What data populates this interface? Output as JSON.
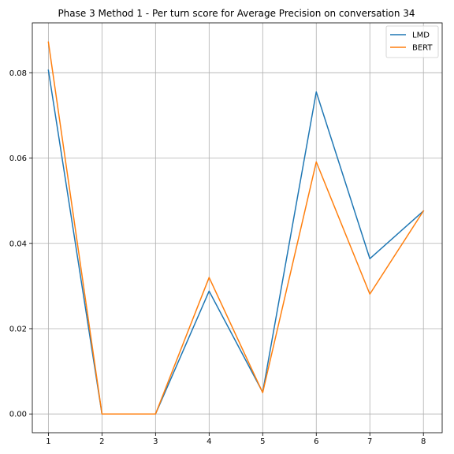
{
  "chart_data": {
    "type": "line",
    "title": "Phase 3 Method 1 - Per turn score for Average Precision on conversation 34",
    "xlabel": "",
    "ylabel": "",
    "x": [
      1,
      2,
      3,
      4,
      5,
      6,
      7,
      8
    ],
    "xticks": [
      "1",
      "2",
      "3",
      "4",
      "5",
      "6",
      "7",
      "8"
    ],
    "yticks": [
      "0.00",
      "0.02",
      "0.04",
      "0.06",
      "0.08"
    ],
    "ytick_values": [
      0.0,
      0.02,
      0.04,
      0.06,
      0.08
    ],
    "xlim": [
      0.7,
      8.35
    ],
    "ylim": [
      -0.0044,
      0.0917
    ],
    "grid": true,
    "legend_position": "top-right",
    "series": [
      {
        "name": "LMD",
        "color": "#1f77b4",
        "values": [
          0.0806,
          0.0,
          0.0,
          0.0288,
          0.0051,
          0.0755,
          0.0364,
          0.0476
        ]
      },
      {
        "name": "BERT",
        "color": "#ff7f0e",
        "values": [
          0.0872,
          0.0,
          0.0,
          0.032,
          0.005,
          0.0591,
          0.0281,
          0.0476
        ]
      }
    ]
  }
}
